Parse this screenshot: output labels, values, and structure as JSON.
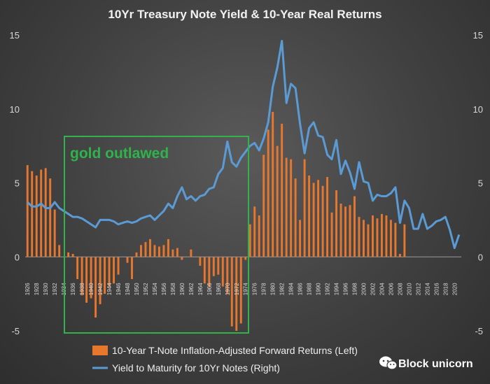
{
  "chart_data": {
    "type": "bar+line",
    "title": "10Yr Treasury Note Yield & 10-Year Real Returns",
    "y_left": {
      "ylim": [
        -5,
        15
      ],
      "ticks": [
        "15",
        "10",
        "5",
        "0",
        "-5"
      ]
    },
    "y_right": {
      "ylim": [
        -5,
        15
      ],
      "ticks": [
        "15",
        "10",
        "5",
        "0",
        "-5"
      ]
    },
    "x": {
      "start": 1926,
      "end": 2021,
      "tick_labels": [
        "1926",
        "1928",
        "1930",
        "1932",
        "1934",
        "1936",
        "1938",
        "1940",
        "1942",
        "1944",
        "1946",
        "1948",
        "1950",
        "1952",
        "1954",
        "1956",
        "1958",
        "1960",
        "1962",
        "1964",
        "1966",
        "1968",
        "1970",
        "1972",
        "1974",
        "1976",
        "1978",
        "1980",
        "1982",
        "1984",
        "1986",
        "1988",
        "1990",
        "1992",
        "1994",
        "1996",
        "1998",
        "2000",
        "2002",
        "2004",
        "2006",
        "2008",
        "2010",
        "2012",
        "2014",
        "2016",
        "2018",
        "2020"
      ]
    },
    "series": [
      {
        "name": "10-Year T-Note Inflation-Adjusted Forward Returns (Left)",
        "type": "bar",
        "color": "#e8772e",
        "years": [
          1926,
          1927,
          1928,
          1929,
          1930,
          1931,
          1932,
          1933,
          1934,
          1935,
          1936,
          1937,
          1938,
          1939,
          1940,
          1941,
          1942,
          1943,
          1944,
          1945,
          1946,
          1947,
          1948,
          1949,
          1950,
          1951,
          1952,
          1953,
          1954,
          1955,
          1956,
          1957,
          1958,
          1959,
          1960,
          1961,
          1962,
          1963,
          1964,
          1965,
          1966,
          1967,
          1968,
          1969,
          1970,
          1971,
          1972,
          1973,
          1974,
          1975,
          1976,
          1977,
          1978,
          1979,
          1980,
          1981,
          1982,
          1983,
          1984,
          1985,
          1986,
          1987,
          1988,
          1989,
          1990,
          1991,
          1992,
          1993,
          1994,
          1995,
          1996,
          1997,
          1998,
          1999,
          2000,
          2001,
          2002,
          2003,
          2004,
          2005,
          2006,
          2007,
          2008,
          2009,
          2010
        ],
        "values": [
          6.2,
          5.8,
          5.5,
          5.9,
          6.0,
          5.3,
          3.2,
          0.8,
          0.0,
          0.3,
          0.2,
          -1.5,
          -2.6,
          -3.1,
          -2.8,
          -4.1,
          -3.2,
          -2.5,
          -2.0,
          -1.8,
          -1.2,
          0.0,
          -0.4,
          -1.5,
          0.3,
          0.8,
          1.0,
          1.2,
          0.8,
          0.7,
          0.8,
          1.2,
          0.5,
          0.6,
          -0.2,
          0.0,
          0.5,
          0.0,
          -0.6,
          -1.8,
          -2.0,
          -1.3,
          -1.2,
          -2.0,
          -2.5,
          -4.7,
          -5.0,
          -4.5,
          -0.2,
          2.2,
          3.4,
          2.8,
          6.9,
          8.6,
          9.8,
          7.5,
          9.0,
          6.7,
          6.6,
          5.3,
          2.5,
          6.6,
          5.5,
          5.0,
          5.2,
          4.8,
          5.4,
          3.0,
          4.5,
          3.6,
          3.4,
          3.5,
          4.1,
          2.7,
          2.5,
          2.2,
          2.8,
          2.6,
          2.9,
          2.8,
          2.5,
          2.3,
          0.2,
          2.2,
          0.0
        ]
      },
      {
        "name": "Yield to Maturity for 10Yr Notes (Right)",
        "type": "line",
        "color": "#5b9bd5",
        "years": [
          1926,
          1927,
          1928,
          1929,
          1930,
          1931,
          1932,
          1933,
          1934,
          1935,
          1936,
          1937,
          1938,
          1939,
          1940,
          1941,
          1942,
          1943,
          1944,
          1945,
          1946,
          1947,
          1948,
          1949,
          1950,
          1951,
          1952,
          1953,
          1954,
          1955,
          1956,
          1957,
          1958,
          1959,
          1960,
          1961,
          1962,
          1963,
          1964,
          1965,
          1966,
          1967,
          1968,
          1969,
          1970,
          1971,
          1972,
          1973,
          1974,
          1975,
          1976,
          1977,
          1978,
          1979,
          1980,
          1981,
          1982,
          1983,
          1984,
          1985,
          1986,
          1987,
          1988,
          1989,
          1990,
          1991,
          1992,
          1993,
          1994,
          1995,
          1996,
          1997,
          1998,
          1999,
          2000,
          2001,
          2002,
          2003,
          2004,
          2005,
          2006,
          2007,
          2008,
          2009,
          2010,
          2011,
          2012,
          2013,
          2014,
          2015,
          2016,
          2017,
          2018,
          2019,
          2020,
          2021
        ],
        "values": [
          3.7,
          3.4,
          3.4,
          3.6,
          3.3,
          3.3,
          3.7,
          3.3,
          3.1,
          2.9,
          2.7,
          2.7,
          2.6,
          2.4,
          2.2,
          2.0,
          2.5,
          2.5,
          2.5,
          2.4,
          2.2,
          2.3,
          2.4,
          2.3,
          2.4,
          2.6,
          2.7,
          2.8,
          2.5,
          2.8,
          3.1,
          3.6,
          3.3,
          4.1,
          4.7,
          3.9,
          4.1,
          3.8,
          4.1,
          4.2,
          4.6,
          4.7,
          5.6,
          6.0,
          7.8,
          6.4,
          6.1,
          6.7,
          7.1,
          7.5,
          7.7,
          7.2,
          8.0,
          9.1,
          11.5,
          12.8,
          14.6,
          10.4,
          11.7,
          11.4,
          9.0,
          7.0,
          8.7,
          9.1,
          8.2,
          8.1,
          6.9,
          6.6,
          7.9,
          5.6,
          6.5,
          5.7,
          4.6,
          6.4,
          5.1,
          5.0,
          3.8,
          4.2,
          4.1,
          4.1,
          4.3,
          4.7,
          2.3,
          3.8,
          3.3,
          1.9,
          1.9,
          2.9,
          1.9,
          2.1,
          2.4,
          2.5,
          2.7,
          1.8,
          0.6,
          1.5
        ]
      }
    ],
    "annotations": [
      "gold outlawed"
    ],
    "legend": "bottom",
    "grid": false
  },
  "watermark": {
    "text": "Block unicorn"
  },
  "colors": {
    "background": "#444444",
    "bars": "#e8772e",
    "line": "#5b9bd5",
    "box": "#2fb34a"
  }
}
